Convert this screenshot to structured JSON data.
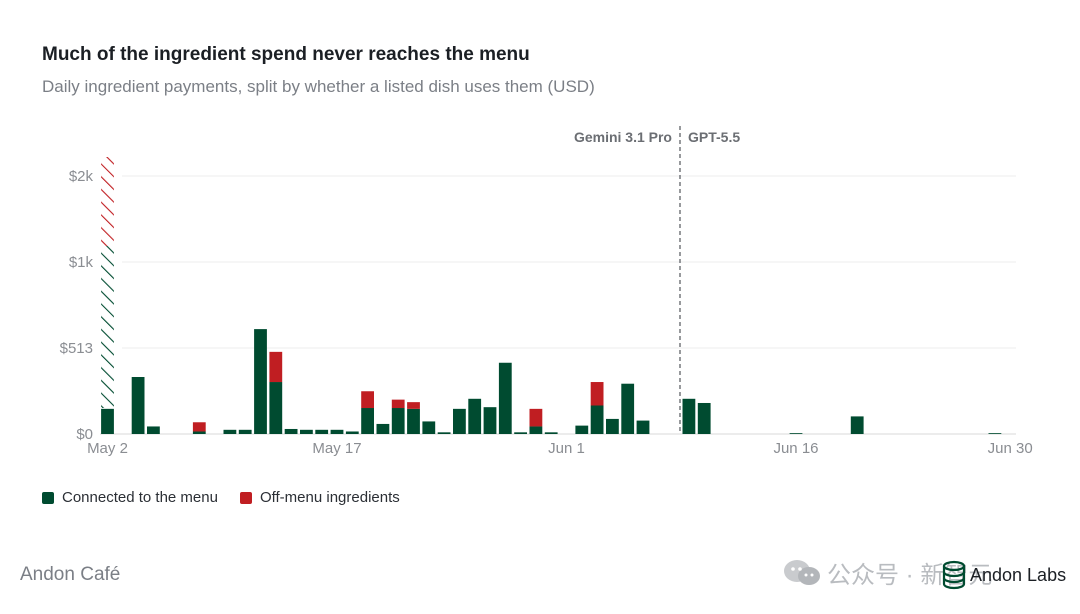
{
  "title": "Much of the ingredient spend never reaches the menu",
  "subtitle": "Daily ingredient payments, split by whether a listed dish uses them (USD)",
  "colors": {
    "menu": "#004b30",
    "offmenu": "#c01e22",
    "grid": "#ececec",
    "axis": "#8a8d92",
    "annotation": "#6b6e73"
  },
  "legend": [
    {
      "label": "Connected to the menu",
      "color": "#004b30"
    },
    {
      "label": "Off-menu ingredients",
      "color": "#c01e22"
    }
  ],
  "footer": {
    "brand": "Andon Café",
    "watermark": "公众号 · 新智元",
    "logo": "Andon Labs"
  },
  "chart_data": {
    "type": "bar",
    "stacked": true,
    "x_start": "May 2",
    "x_end": "Jun 30",
    "x_ticks": [
      "May 2",
      "May 17",
      "Jun 1",
      "Jun 16",
      "Jun 30"
    ],
    "y_ticks": [
      "$0",
      "$513",
      "$1k",
      "$2k"
    ],
    "y_tick_values": [
      0,
      513,
      1000,
      2000
    ],
    "grid": true,
    "legend_position": "bottom-left",
    "annotation": {
      "date": "Jun 6",
      "left_label": "Gemini 3.1 Pro",
      "right_label": "GPT-5.5"
    },
    "series": [
      {
        "name": "Connected to the menu",
        "values": [
          150,
          0,
          340,
          45,
          0,
          0,
          15,
          0,
          25,
          25,
          620,
          310,
          30,
          25,
          25,
          25,
          15,
          155,
          60,
          155,
          150,
          75,
          10,
          150,
          210,
          160,
          425,
          10,
          45,
          10,
          0,
          50,
          170,
          90,
          300,
          80,
          0,
          0,
          210,
          185,
          0,
          0,
          0,
          0,
          0,
          5,
          0,
          0,
          0,
          105,
          0,
          0,
          0,
          0,
          0,
          0,
          0,
          0,
          5,
          0
        ]
      },
      {
        "name": "Off-menu ingredients",
        "values": [
          0,
          0,
          0,
          0,
          0,
          0,
          55,
          0,
          0,
          0,
          0,
          180,
          0,
          0,
          0,
          0,
          0,
          100,
          0,
          50,
          40,
          0,
          0,
          0,
          0,
          0,
          0,
          0,
          105,
          0,
          0,
          0,
          140,
          0,
          0,
          0,
          0,
          0,
          0,
          0,
          0,
          0,
          0,
          0,
          0,
          0,
          0,
          0,
          0,
          0,
          0,
          0,
          0,
          0,
          0,
          0,
          0,
          0,
          0,
          0
        ]
      }
    ],
    "overflow_bar": {
      "index": 0,
      "note": "extends beyond axis"
    }
  }
}
